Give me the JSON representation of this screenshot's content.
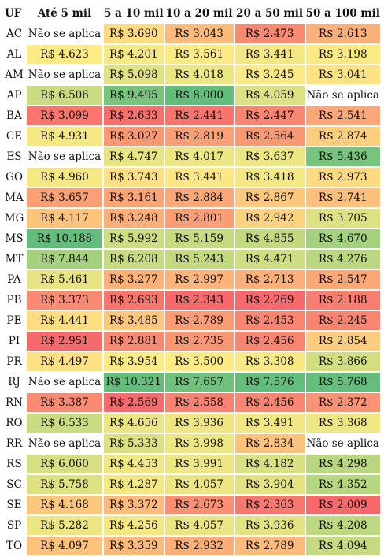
{
  "chart_data": {
    "type": "heatmap",
    "columns": [
      "UF",
      "Até 5 mil",
      "5 a 10 mil",
      "10 a 20 mil",
      "20 a 50 mil",
      "50 a 100 mil"
    ],
    "currency_prefix": "R$",
    "not_applicable_text": "Não se aplica",
    "color_scale": {
      "low": "#f8696b",
      "mid": "#ffeb84",
      "high": "#63be7b",
      "missing": "#ffffff"
    },
    "rows": [
      {
        "uf": "AC",
        "values": [
          null,
          3690,
          3043,
          2473,
          2613
        ]
      },
      {
        "uf": "AL",
        "values": [
          4623,
          4201,
          3561,
          3441,
          3198
        ]
      },
      {
        "uf": "AM",
        "values": [
          null,
          5098,
          4018,
          3245,
          3041
        ]
      },
      {
        "uf": "AP",
        "values": [
          6506,
          9495,
          8000,
          4059,
          null
        ]
      },
      {
        "uf": "BA",
        "values": [
          3099,
          2633,
          2441,
          2447,
          2541
        ]
      },
      {
        "uf": "CE",
        "values": [
          4931,
          3027,
          2819,
          2564,
          2874
        ]
      },
      {
        "uf": "ES",
        "values": [
          null,
          4747,
          4017,
          3637,
          5436
        ]
      },
      {
        "uf": "GO",
        "values": [
          4960,
          3743,
          3441,
          3418,
          2973
        ]
      },
      {
        "uf": "MA",
        "values": [
          3657,
          3161,
          2884,
          2867,
          2741
        ]
      },
      {
        "uf": "MG",
        "values": [
          4117,
          3248,
          2801,
          2942,
          3705
        ]
      },
      {
        "uf": "MS",
        "values": [
          10188,
          5992,
          5159,
          4855,
          4670
        ]
      },
      {
        "uf": "MT",
        "values": [
          7844,
          6208,
          5243,
          4471,
          4276
        ]
      },
      {
        "uf": "PA",
        "values": [
          5461,
          3277,
          2997,
          2713,
          2547
        ]
      },
      {
        "uf": "PB",
        "values": [
          3373,
          2693,
          2343,
          2269,
          2188
        ]
      },
      {
        "uf": "PE",
        "values": [
          4441,
          3485,
          2789,
          2453,
          2245
        ]
      },
      {
        "uf": "PI",
        "values": [
          2951,
          2881,
          2735,
          2456,
          2854
        ]
      },
      {
        "uf": "PR",
        "values": [
          4497,
          3954,
          3500,
          3308,
          3866
        ]
      },
      {
        "uf": "RJ",
        "values": [
          null,
          10321,
          7657,
          7576,
          5768
        ]
      },
      {
        "uf": "RN",
        "values": [
          3387,
          2569,
          2558,
          2456,
          2372
        ]
      },
      {
        "uf": "RO",
        "values": [
          6533,
          4656,
          3936,
          3491,
          3368
        ]
      },
      {
        "uf": "RR",
        "values": [
          null,
          5333,
          3998,
          2834,
          null
        ]
      },
      {
        "uf": "RS",
        "values": [
          6060,
          4453,
          3991,
          4182,
          4298
        ]
      },
      {
        "uf": "SC",
        "values": [
          5758,
          4287,
          4057,
          3904,
          4352
        ]
      },
      {
        "uf": "SE",
        "values": [
          4168,
          3372,
          2673,
          2363,
          2009
        ]
      },
      {
        "uf": "SP",
        "values": [
          5282,
          4256,
          4057,
          3936,
          4208
        ]
      },
      {
        "uf": "TO",
        "values": [
          4097,
          3359,
          2932,
          2789,
          4094
        ]
      }
    ]
  }
}
